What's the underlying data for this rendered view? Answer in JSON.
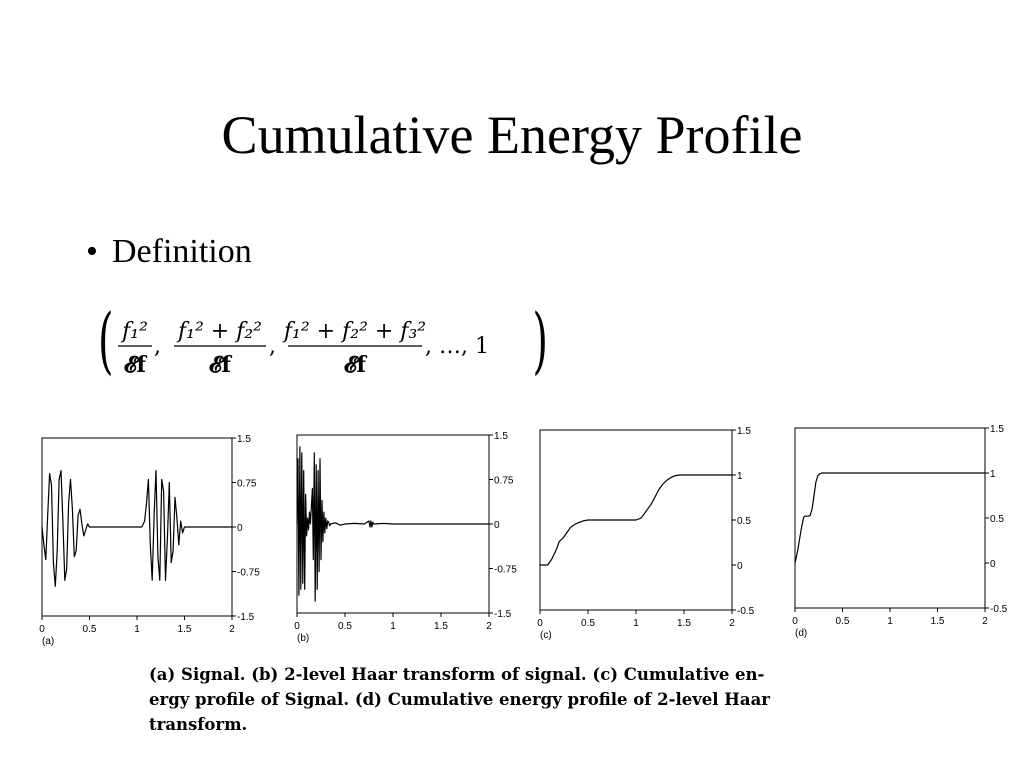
{
  "slide": {
    "title": "Cumulative Energy Profile",
    "bullet_symbol": "•",
    "bullet_text": "Definition"
  },
  "formula": {
    "open_paren": "(",
    "close_paren": ")",
    "term1_num": "f₁²",
    "term1_den": "𝓔f",
    "term2_num": "f₁² + f₂²",
    "term2_den": "𝓔f",
    "term3_num": "f₁² + f₂² + f₃²",
    "term3_den": "𝓔f",
    "comma": ",",
    "tail": ", …, 1"
  },
  "caption": {
    "line1": "(a) Signal.  (b) 2-level Haar transform of signal.  (c) Cumulative en-",
    "line2": "ergy profile of Signal.  (d) Cumulative energy profile of 2-level Haar",
    "line3": "transform."
  },
  "chart_data": [
    {
      "type": "line",
      "panel_label": "(a)",
      "xticks": [
        "0",
        "0.5",
        "1",
        "1.5",
        "2"
      ],
      "yticks": [
        "1.5",
        "0.75",
        "0",
        "-0.75",
        "-1.5"
      ],
      "xlim": [
        0,
        2
      ],
      "ylim": [
        -1.5,
        1.5
      ],
      "y_axis_side": "right",
      "series": [
        {
          "x": [
            0,
            0.02,
            0.04,
            0.06,
            0.08,
            0.1,
            0.12,
            0.14,
            0.16,
            0.18,
            0.2,
            0.22,
            0.24,
            0.26,
            0.28,
            0.3,
            0.32,
            0.34,
            0.36,
            0.38,
            0.4,
            0.42,
            0.44,
            0.46,
            0.48,
            0.5,
            0.55,
            0.6,
            0.65,
            0.7,
            0.75,
            0.8,
            0.85,
            0.9,
            0.95,
            1.0,
            1.05,
            1.08,
            1.1,
            1.12,
            1.14,
            1.16,
            1.18,
            1.2,
            1.22,
            1.24,
            1.26,
            1.28,
            1.3,
            1.32,
            1.34,
            1.36,
            1.38,
            1.4,
            1.42,
            1.44,
            1.46,
            1.48,
            1.5,
            1.55,
            1.6,
            1.65,
            1.7,
            1.75,
            1.8,
            1.85,
            1.9,
            1.95,
            2.0
          ],
          "y": [
            0,
            -0.3,
            -0.55,
            0.2,
            0.9,
            0.7,
            -0.6,
            -1.0,
            -0.4,
            0.8,
            0.95,
            0.1,
            -0.9,
            -0.7,
            0.4,
            0.8,
            0.3,
            -0.5,
            -0.4,
            0.2,
            0.3,
            0.05,
            -0.15,
            -0.05,
            0.05,
            0,
            0,
            0,
            0,
            0,
            0,
            0,
            0,
            0,
            0,
            0,
            0,
            0.1,
            0.4,
            0.8,
            -0.3,
            -0.9,
            0.2,
            0.95,
            -0.5,
            -0.9,
            0.8,
            0.6,
            -0.9,
            -0.2,
            0.75,
            -0.6,
            -0.4,
            0.5,
            0.15,
            -0.3,
            0.1,
            -0.1,
            0,
            0,
            0,
            0,
            0,
            0,
            0,
            0,
            0,
            0,
            0
          ]
        }
      ]
    },
    {
      "type": "line",
      "panel_label": "(b)",
      "xticks": [
        "0",
        "0.5",
        "1",
        "1.5",
        "2"
      ],
      "yticks": [
        "1.5",
        "0.75",
        "0",
        "-0.75",
        "-1.5"
      ],
      "xlim": [
        0,
        2
      ],
      "ylim": [
        -1.5,
        1.5
      ],
      "y_axis_side": "right",
      "series": [
        {
          "x": [
            0,
            0.01,
            0.02,
            0.03,
            0.04,
            0.05,
            0.06,
            0.07,
            0.08,
            0.09,
            0.1,
            0.11,
            0.12,
            0.13,
            0.14,
            0.15,
            0.16,
            0.17,
            0.18,
            0.19,
            0.2,
            0.21,
            0.22,
            0.23,
            0.24,
            0.25,
            0.26,
            0.27,
            0.28,
            0.29,
            0.3,
            0.31,
            0.32,
            0.33,
            0.34,
            0.35,
            0.4,
            0.45,
            0.5,
            0.6,
            0.7,
            0.75,
            0.76,
            0.77,
            0.78,
            0.79,
            0.8,
            0.9,
            1.0,
            1.2,
            1.4,
            1.6,
            1.8,
            2.0
          ],
          "y": [
            0,
            1.1,
            -1.2,
            1.3,
            -1.1,
            1.2,
            -1.0,
            0.9,
            -1.1,
            0.5,
            -0.2,
            0.1,
            -0.1,
            0.2,
            0,
            0.3,
            0.6,
            -0.6,
            1.2,
            -1.3,
            1.0,
            -1.1,
            0.9,
            -0.8,
            1.1,
            -0.6,
            0.4,
            -0.3,
            0.2,
            -0.15,
            0.1,
            -0.08,
            0.05,
            0.03,
            -0.03,
            0,
            0.02,
            -0.02,
            0,
            0.01,
            0,
            0.05,
            -0.05,
            0.05,
            -0.05,
            0.03,
            0,
            0.01,
            0,
            0,
            0,
            0,
            0,
            0
          ]
        }
      ]
    },
    {
      "type": "line",
      "panel_label": "(c)",
      "xticks": [
        "0",
        "0.5",
        "1",
        "1.5",
        "2"
      ],
      "yticks": [
        "1.5",
        "1",
        "0.5",
        "0",
        "-0.5"
      ],
      "xlim": [
        0,
        2
      ],
      "ylim": [
        -0.5,
        1.5
      ],
      "y_axis_side": "right",
      "series": [
        {
          "x": [
            0,
            0.08,
            0.12,
            0.16,
            0.18,
            0.2,
            0.24,
            0.28,
            0.32,
            0.36,
            0.4,
            0.45,
            0.5,
            0.55,
            0.6,
            0.8,
            1.0,
            1.05,
            1.08,
            1.12,
            1.16,
            1.2,
            1.24,
            1.28,
            1.32,
            1.36,
            1.4,
            1.45,
            1.5,
            1.6,
            1.8,
            2.0
          ],
          "y": [
            0,
            0,
            0.06,
            0.15,
            0.2,
            0.26,
            0.3,
            0.36,
            0.42,
            0.45,
            0.47,
            0.49,
            0.5,
            0.5,
            0.5,
            0.5,
            0.5,
            0.52,
            0.56,
            0.62,
            0.68,
            0.76,
            0.84,
            0.9,
            0.94,
            0.97,
            0.99,
            1.0,
            1.0,
            1.0,
            1.0,
            1.0
          ]
        }
      ]
    },
    {
      "type": "line",
      "panel_label": "(d)",
      "xticks": [
        "0",
        "0.5",
        "1",
        "1.5",
        "2"
      ],
      "yticks": [
        "1.5",
        "1",
        "0.5",
        "0",
        "-0.5"
      ],
      "xlim": [
        0,
        2
      ],
      "ylim": [
        -0.5,
        1.5
      ],
      "y_axis_side": "right",
      "series": [
        {
          "x": [
            0,
            0.01,
            0.03,
            0.05,
            0.07,
            0.09,
            0.1,
            0.12,
            0.14,
            0.16,
            0.18,
            0.2,
            0.22,
            0.24,
            0.26,
            0.28,
            0.3,
            0.35,
            0.5,
            1.0,
            1.5,
            2.0
          ],
          "y": [
            0,
            0.05,
            0.15,
            0.28,
            0.4,
            0.5,
            0.52,
            0.52,
            0.52,
            0.53,
            0.6,
            0.75,
            0.9,
            0.97,
            0.99,
            1.0,
            1.0,
            1.0,
            1.0,
            1.0,
            1.0,
            1.0
          ]
        }
      ]
    }
  ]
}
